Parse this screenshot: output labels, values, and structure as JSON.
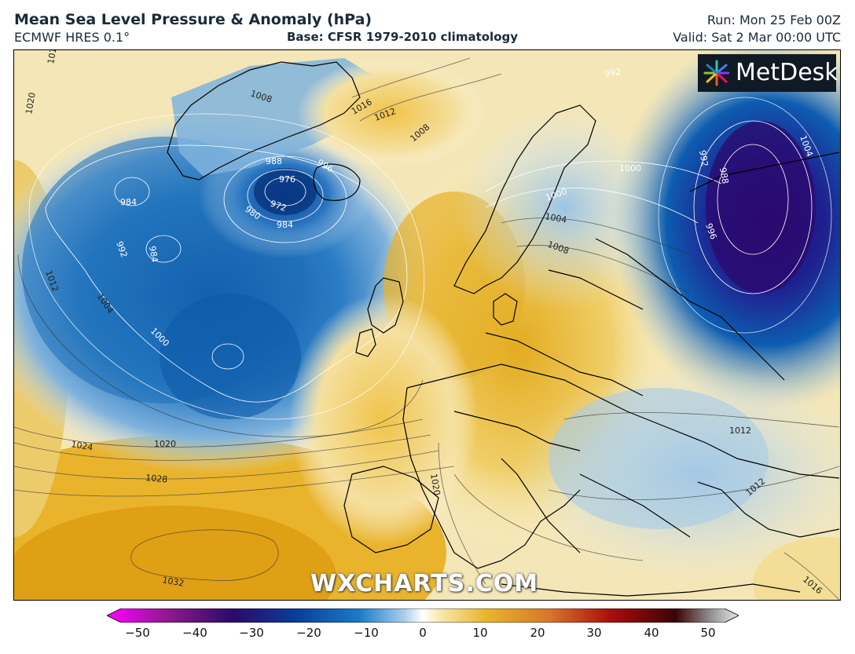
{
  "header": {
    "title": "Mean Sea Level Pressure & Anomaly (hPa)",
    "model": "ECMWF HRES 0.1°",
    "base": "Base: CFSR 1979-2010 climatology",
    "run": "Run: Mon 25 Feb 00Z",
    "valid": "Valid: Sat 2 Mar 00:00 UTC"
  },
  "brand": {
    "logo_text": "MetDesk",
    "watermark": "WXCHARTS.COM"
  },
  "colorbar": {
    "ticks": [
      "−50",
      "−40",
      "−30",
      "−20",
      "−10",
      "0",
      "10",
      "20",
      "30",
      "40",
      "50"
    ],
    "min": -50,
    "max": 50,
    "colors": {
      "strong_negative": "#1a0c7a",
      "negative": "#0b5fb0",
      "weak_negative": "#bcd6ea",
      "zero": "#ffffff",
      "weak_positive": "#f5e3a0",
      "positive": "#e8b62a",
      "strong_positive": "#8b0000"
    }
  },
  "isobars": {
    "low_greenland": [
      "1008",
      "1016",
      "1012",
      "1008"
    ],
    "iceland_low": [
      "976",
      "972",
      "980",
      "984",
      "988",
      "996"
    ],
    "atlantic_low": [
      "984",
      "984",
      "992",
      "1004",
      "1000",
      "1012"
    ],
    "high_south": [
      "1020",
      "1024",
      "1028",
      "1032"
    ],
    "scandinavia": [
      "1000",
      "1000",
      "1004",
      "1008",
      "992"
    ],
    "russia_low": [
      "992",
      "988",
      "996",
      "1004"
    ],
    "mediterranean": [
      "1012",
      "1012",
      "1016",
      "1020",
      "1016",
      "1020"
    ]
  }
}
